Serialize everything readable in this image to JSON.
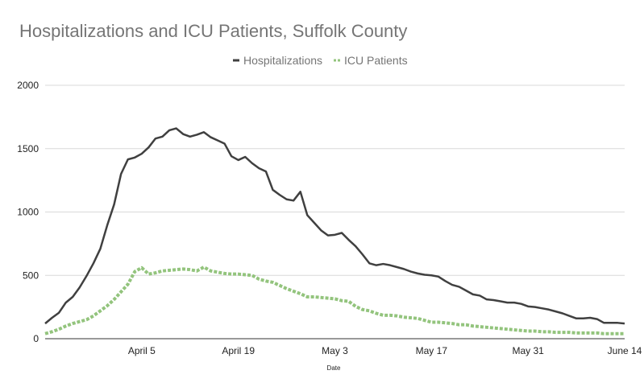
{
  "chart_data": {
    "type": "line",
    "title": "Hospitalizations and ICU Patients, Suffolk County",
    "xlabel": "Date",
    "ylabel": "",
    "ylim": [
      0,
      2000
    ],
    "yticks": [
      "0",
      "500",
      "1000",
      "1500",
      "2000"
    ],
    "xticks": [
      {
        "label": "April 5",
        "day": 14
      },
      {
        "label": "April 19",
        "day": 28
      },
      {
        "label": "May 3",
        "day": 42
      },
      {
        "label": "May 17",
        "day": 56
      },
      {
        "label": "May 31",
        "day": 70
      },
      {
        "label": "June 14",
        "day": 84
      }
    ],
    "grid": true,
    "legend_position": "top",
    "series": [
      {
        "name": "Hospitalizations",
        "color": "#404040",
        "style": "solid",
        "values": [
          120,
          165,
          205,
          285,
          330,
          405,
          495,
          595,
          710,
          895,
          1060,
          1300,
          1415,
          1430,
          1460,
          1510,
          1580,
          1595,
          1645,
          1660,
          1615,
          1595,
          1610,
          1630,
          1590,
          1565,
          1540,
          1440,
          1410,
          1435,
          1385,
          1345,
          1320,
          1175,
          1135,
          1100,
          1090,
          1160,
          975,
          915,
          855,
          815,
          820,
          835,
          780,
          730,
          665,
          595,
          580,
          590,
          580,
          565,
          550,
          530,
          515,
          505,
          500,
          490,
          455,
          425,
          410,
          380,
          350,
          340,
          310,
          305,
          295,
          285,
          285,
          275,
          255,
          250,
          240,
          230,
          215,
          200,
          180,
          160,
          160,
          165,
          155,
          125,
          125,
          125,
          120
        ]
      },
      {
        "name": "ICU Patients",
        "color": "#93c47d",
        "style": "dashed",
        "values": [
          40,
          55,
          75,
          100,
          120,
          135,
          150,
          180,
          220,
          260,
          310,
          370,
          430,
          530,
          560,
          510,
          520,
          535,
          540,
          545,
          550,
          545,
          535,
          565,
          535,
          525,
          515,
          510,
          510,
          505,
          500,
          470,
          455,
          445,
          420,
          395,
          375,
          355,
          330,
          330,
          325,
          320,
          315,
          300,
          295,
          255,
          230,
          220,
          200,
          185,
          185,
          180,
          170,
          165,
          160,
          145,
          130,
          130,
          125,
          120,
          110,
          110,
          100,
          95,
          90,
          85,
          80,
          75,
          70,
          65,
          60,
          60,
          55,
          55,
          50,
          50,
          50,
          45,
          45,
          45,
          45,
          40,
          40,
          40,
          40
        ]
      }
    ]
  }
}
